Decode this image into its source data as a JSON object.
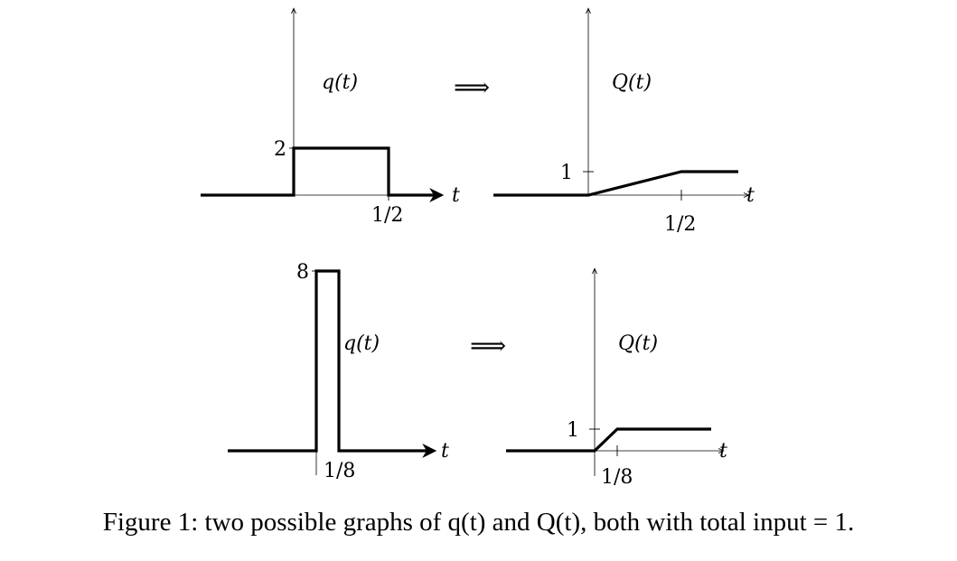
{
  "figure": {
    "caption": "Figure 1: two possible graphs of q(t) and Q(t), both with total input = 1.",
    "implies_symbol": "⟹",
    "panels": {
      "top_left": {
        "function_label": "q(t)",
        "axis_label": "t",
        "y_tick_label": "2",
        "x_tick_label": "1/2"
      },
      "top_right": {
        "function_label": "Q(t)",
        "axis_label": "t",
        "y_tick_label": "1",
        "x_tick_label": "1/2"
      },
      "bottom_left": {
        "function_label": "q(t)",
        "axis_label": "t",
        "y_tick_label": "8",
        "x_tick_label": "1/8"
      },
      "bottom_right": {
        "function_label": "Q(t)",
        "axis_label": "t",
        "y_tick_label": "1",
        "x_tick_label": "1/8"
      }
    }
  }
}
